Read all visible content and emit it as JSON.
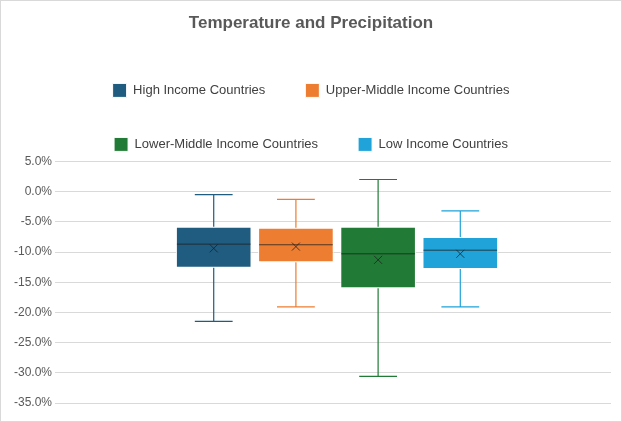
{
  "chart_data": {
    "type": "box",
    "title": "Temperature and Precipitation",
    "series": [
      {
        "name": "High Income Countries",
        "color": "#1f5c80",
        "min": -21.5,
        "q1": -12.6,
        "median": -8.7,
        "q3": -5.8,
        "max": -0.5,
        "mean": -9.4
      },
      {
        "name": "Upper-Middle Income Countries",
        "color": "#ed7d31",
        "min": -19.1,
        "q1": -11.7,
        "median": -8.8,
        "q3": -6.0,
        "max": -1.3,
        "mean": -9.1
      },
      {
        "name": "Lower-Middle Income Countries",
        "color": "#217a35",
        "min": -30.6,
        "q1": -16.0,
        "median": -10.3,
        "q3": -5.8,
        "max": 2.0,
        "mean": -11.3
      },
      {
        "name": "Low Income Countries",
        "color": "#1fa3d9",
        "min": -19.1,
        "q1": -12.8,
        "median": -9.7,
        "q3": -7.5,
        "max": -3.2,
        "mean": -10.3
      }
    ],
    "ylim": [
      -35,
      5
    ],
    "yticks": [
      {
        "value": -35,
        "label": "-35.0%"
      },
      {
        "value": -30,
        "label": "-30.0%"
      },
      {
        "value": -25,
        "label": "-25.0%"
      },
      {
        "value": -20,
        "label": "-20.0%"
      },
      {
        "value": -15,
        "label": "-15.0%"
      },
      {
        "value": -10,
        "label": "-10.0%"
      },
      {
        "value": -5,
        "label": "-5.0%"
      },
      {
        "value": 0,
        "label": "0.0%"
      },
      {
        "value": 5,
        "label": "5.0%"
      }
    ],
    "grid": true,
    "legend": "top",
    "tick_labels": "y"
  }
}
